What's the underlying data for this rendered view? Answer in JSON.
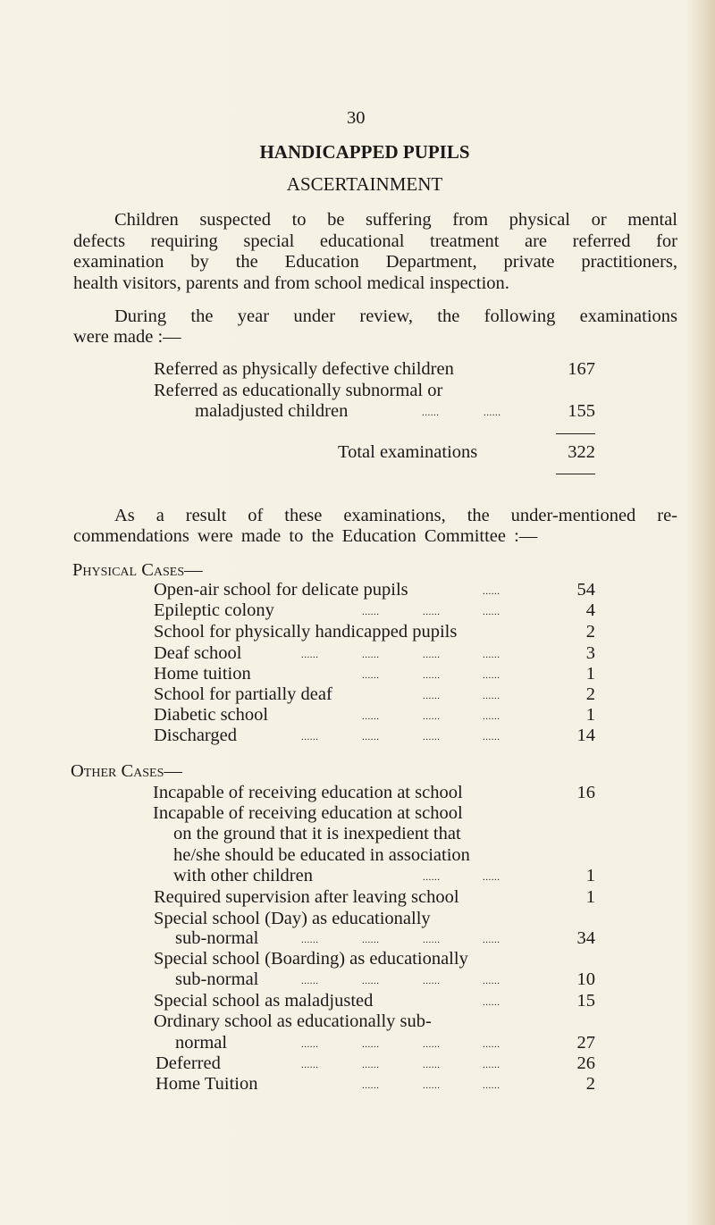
{
  "page_number": "30",
  "title": "HANDICAPPED PUPILS",
  "subtitle": "ASCERTAINMENT",
  "intro_lines": [
    "Children suspected to be suffering from physical or mental",
    "defects requiring special educational treatment are referred for",
    "examination by the Education Department, private practitioners,",
    "health visitors, parents and from school medical inspection."
  ],
  "during_lines": [
    "During the year under review, the following examinations",
    "were made :—"
  ],
  "examinations": {
    "rows": [
      {
        "label": "Referred as physically defective children",
        "value": "167"
      },
      {
        "label": "Referred as educationally subnormal or",
        "value": ""
      },
      {
        "label": "maladjusted children",
        "value": "155"
      }
    ],
    "total_label": "Total examinations",
    "total_value": "322"
  },
  "result_lines": [
    "As a result of these examinations, the under-mentioned re-",
    "commendations were made to the Education Committee :—"
  ],
  "physical_cases": {
    "heading": "Physical Cases—",
    "items": [
      {
        "label": "Open-air school for delicate pupils",
        "value": "54"
      },
      {
        "label": "Epileptic colony",
        "value": "4"
      },
      {
        "label": "School for physically handicapped pupils",
        "value": "2"
      },
      {
        "label": "Deaf school",
        "value": "3"
      },
      {
        "label": "Home tuition",
        "value": "1"
      },
      {
        "label": "School for partially deaf",
        "value": "2"
      },
      {
        "label": "Diabetic school",
        "value": "1"
      },
      {
        "label": "Discharged",
        "value": "14"
      }
    ]
  },
  "other_cases": {
    "heading": "Other Cases—",
    "lines": [
      {
        "label": "Incapable of receiving education at school",
        "value": "16"
      },
      {
        "label": "Incapable of receiving education at school",
        "value": ""
      },
      {
        "label": "on the ground that it is inexpedient that",
        "value": ""
      },
      {
        "label": "he/she should be educated in association",
        "value": ""
      },
      {
        "label": "with other children",
        "value": "1"
      },
      {
        "label": "Required supervision after leaving school",
        "value": "1"
      },
      {
        "label": "Special school (Day) as educationally",
        "value": ""
      },
      {
        "label": "sub-normal",
        "value": "34"
      },
      {
        "label": "Special school (Boarding) as educationally",
        "value": ""
      },
      {
        "label": "sub-normal",
        "value": "10"
      },
      {
        "label": "Special school as maladjusted",
        "value": "15"
      },
      {
        "label": "Ordinary school as educationally sub-",
        "value": ""
      },
      {
        "label": "normal",
        "value": "27"
      },
      {
        "label": "Deferred",
        "value": "26"
      },
      {
        "label": "Home Tuition",
        "value": "2"
      }
    ]
  }
}
